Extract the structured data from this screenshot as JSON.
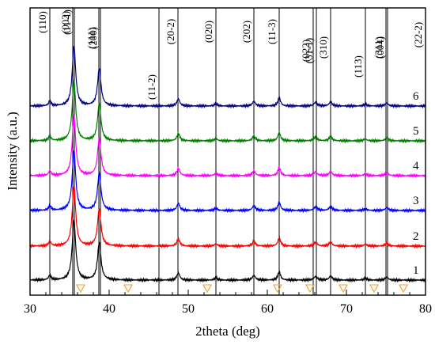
{
  "chart_data": {
    "type": "line",
    "title": "",
    "xlabel": "2theta (deg)",
    "ylabel": "Intensity (a.u.)",
    "xlim": [
      30,
      80
    ],
    "xticks": [
      30,
      40,
      50,
      60,
      70,
      80
    ],
    "grid": false,
    "reference_lines": [
      {
        "label": "(110)",
        "x": 32.5
      },
      {
        "label": "(002)",
        "x": 35.4
      },
      {
        "label": "(11-1)",
        "x": 35.6
      },
      {
        "label": "(111)",
        "x": 38.7
      },
      {
        "label": "(200)",
        "x": 38.9
      },
      {
        "label": "(11-2)",
        "x": 46.3
      },
      {
        "label": "(20-2)",
        "x": 48.7
      },
      {
        "label": "(020)",
        "x": 53.5
      },
      {
        "label": "(202)",
        "x": 58.3
      },
      {
        "label": "(11-3)",
        "x": 61.5
      },
      {
        "label": "(022)",
        "x": 65.8
      },
      {
        "label": "(31-1)",
        "x": 66.2
      },
      {
        "label": "(310)",
        "x": 68.0
      },
      {
        "label": "(113)",
        "x": 72.4
      },
      {
        "label": "(311)",
        "x": 75.0
      },
      {
        "label": "(004)",
        "x": 75.2
      },
      {
        "label": "(22-2)",
        "x": 80.0
      }
    ],
    "triangle_markers_x": [
      36.4,
      42.4,
      52.4,
      61.3,
      65.4,
      69.6,
      73.5,
      77.2
    ],
    "peaks": [
      {
        "x": 32.5,
        "height": 0.08,
        "width": 0.18
      },
      {
        "x": 35.55,
        "height": 1.0,
        "width": 0.26
      },
      {
        "x": 38.75,
        "height": 0.62,
        "width": 0.26
      },
      {
        "x": 48.75,
        "height": 0.12,
        "width": 0.22
      },
      {
        "x": 53.5,
        "height": 0.04,
        "width": 0.2
      },
      {
        "x": 58.3,
        "height": 0.08,
        "width": 0.22
      },
      {
        "x": 61.5,
        "height": 0.14,
        "width": 0.2
      },
      {
        "x": 66.1,
        "height": 0.06,
        "width": 0.25
      },
      {
        "x": 68.0,
        "height": 0.07,
        "width": 0.22
      },
      {
        "x": 72.4,
        "height": 0.03,
        "width": 0.22
      },
      {
        "x": 75.1,
        "height": 0.05,
        "width": 0.22
      }
    ],
    "series": [
      {
        "name": "1",
        "color": "#000000"
      },
      {
        "name": "2",
        "color": "#ff0000"
      },
      {
        "name": "3",
        "color": "#0000ff"
      },
      {
        "name": "4",
        "color": "#ff00ff"
      },
      {
        "name": "5",
        "color": "#008000"
      },
      {
        "name": "6",
        "color": "#00007f"
      }
    ],
    "marker_color": "#f0a030"
  }
}
